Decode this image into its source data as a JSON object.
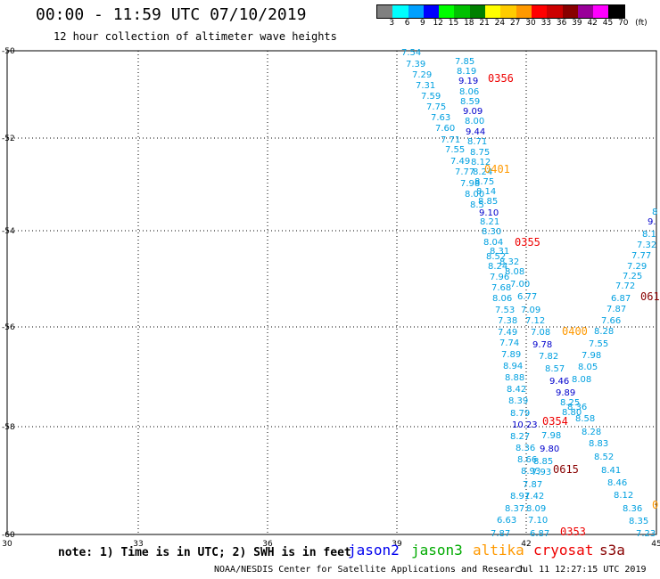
{
  "header": {
    "title": "00:00 - 11:59 UTC 07/10/2019",
    "subtitle": "12 hour collection of altimeter wave heights"
  },
  "colorbar": {
    "labels": [
      "3",
      "6",
      "9",
      "12",
      "15",
      "18",
      "21",
      "24",
      "27",
      "30",
      "33",
      "36",
      "39",
      "42",
      "45",
      "70"
    ],
    "unit": "(ft)",
    "colors": [
      "#808080",
      "#00ffff",
      "#00a0ff",
      "#0000ff",
      "#00ff00",
      "#00c000",
      "#008000",
      "#ffff00",
      "#ffcc00",
      "#ff9900",
      "#ff0000",
      "#cc0000",
      "#880000",
      "#990099",
      "#ff00ff",
      "#000000"
    ]
  },
  "axes": {
    "x_ticks": [
      "30",
      "33",
      "36",
      "39",
      "42",
      "45"
    ],
    "y_ticks": [
      "-50",
      "-52",
      "-54",
      "-56",
      "-58",
      "-60"
    ]
  },
  "map": {
    "track_values": [
      {
        "v": "7.54",
        "c": "#00a0e0"
      },
      {
        "v": "7.39",
        "c": "#00a0e0"
      },
      {
        "v": "7.29",
        "c": "#00a0e0"
      },
      {
        "v": "7.31",
        "c": "#00a0e0"
      },
      {
        "v": "7.59",
        "c": "#00a0e0"
      },
      {
        "v": "7.75",
        "c": "#00a0e0"
      },
      {
        "v": "7.63",
        "c": "#00a0e0"
      },
      {
        "v": "7.60",
        "c": "#00a0e0"
      },
      {
        "v": "7.71",
        "c": "#00a0e0"
      },
      {
        "v": "7.55",
        "c": "#00a0e0"
      },
      {
        "v": "7.49",
        "c": "#00a0e0"
      },
      {
        "v": "7.77",
        "c": "#00a0e0"
      },
      {
        "v": "7.98",
        "c": "#00a0e0"
      },
      {
        "v": "8.00",
        "c": "#00a0e0"
      },
      {
        "v": "8.5",
        "c": "#00a0e0"
      },
      {
        "v": "7.85",
        "c": "#00a0e0"
      },
      {
        "v": "8.19",
        "c": "#00a0e0"
      },
      {
        "v": "9.19",
        "c": "#0000cc"
      },
      {
        "v": "8.06",
        "c": "#00a0e0"
      },
      {
        "v": "8.59",
        "c": "#00a0e0"
      },
      {
        "v": "9.09",
        "c": "#0000cc"
      },
      {
        "v": "8.00",
        "c": "#00a0e0"
      },
      {
        "v": "9.44",
        "c": "#0000cc"
      },
      {
        "v": "8.71",
        "c": "#00a0e0"
      },
      {
        "v": "8.75",
        "c": "#00a0e0"
      },
      {
        "v": "8.12",
        "c": "#00a0e0"
      },
      {
        "v": "8.24",
        "c": "#00a0e0"
      },
      {
        "v": "8.75",
        "c": "#00a0e0"
      },
      {
        "v": "8.14",
        "c": "#00a0e0"
      },
      {
        "v": "8.85",
        "c": "#00a0e0"
      },
      {
        "v": "9.10",
        "c": "#0000cc"
      },
      {
        "v": "8.21",
        "c": "#00a0e0"
      },
      {
        "v": "8.30",
        "c": "#00a0e0"
      },
      {
        "v": "8.04",
        "c": "#00a0e0"
      },
      {
        "v": "8.31",
        "c": "#00a0e0"
      },
      {
        "v": "8.52",
        "c": "#00a0e0"
      },
      {
        "v": "8.32",
        "c": "#00a0e0"
      },
      {
        "v": "8.24",
        "c": "#00a0e0"
      },
      {
        "v": "8.08",
        "c": "#00a0e0"
      },
      {
        "v": "7.96",
        "c": "#00a0e0"
      },
      {
        "v": "7.00",
        "c": "#00a0e0"
      },
      {
        "v": "7.68",
        "c": "#00a0e0"
      },
      {
        "v": "6.77",
        "c": "#00a0e0"
      },
      {
        "v": "8.06",
        "c": "#00a0e0"
      },
      {
        "v": "7.09",
        "c": "#00a0e0"
      },
      {
        "v": "7.53",
        "c": "#00a0e0"
      },
      {
        "v": "7.12",
        "c": "#00a0e0"
      },
      {
        "v": "7.38",
        "c": "#00a0e0"
      },
      {
        "v": "7.08",
        "c": "#00a0e0"
      },
      {
        "v": "7.49",
        "c": "#00a0e0"
      },
      {
        "v": "9.78",
        "c": "#0000cc"
      },
      {
        "v": "7.74",
        "c": "#00a0e0"
      },
      {
        "v": "7.82",
        "c": "#00a0e0"
      },
      {
        "v": "7.89",
        "c": "#00a0e0"
      },
      {
        "v": "8.57",
        "c": "#00a0e0"
      },
      {
        "v": "8.94",
        "c": "#00a0e0"
      },
      {
        "v": "9.46",
        "c": "#0000cc"
      },
      {
        "v": "8.88",
        "c": "#00a0e0"
      },
      {
        "v": "9.89",
        "c": "#0000cc"
      },
      {
        "v": "8.42",
        "c": "#00a0e0"
      },
      {
        "v": "8.25",
        "c": "#00a0e0"
      },
      {
        "v": "8.39",
        "c": "#00a0e0"
      },
      {
        "v": "8.79",
        "c": "#00a0e0"
      },
      {
        "v": "8.80",
        "c": "#00a0e0"
      },
      {
        "v": "10.23",
        "c": "#0000cc"
      },
      {
        "v": "8.27",
        "c": "#00a0e0"
      },
      {
        "v": "7.98",
        "c": "#00a0e0"
      },
      {
        "v": "8.36",
        "c": "#00a0e0"
      },
      {
        "v": "9.80",
        "c": "#0000cc"
      },
      {
        "v": "8.66",
        "c": "#00a0e0"
      },
      {
        "v": "8.85",
        "c": "#00a0e0"
      },
      {
        "v": "8.93",
        "c": "#00a0e0"
      },
      {
        "v": "7.93",
        "c": "#00a0e0"
      },
      {
        "v": "7.87",
        "c": "#00a0e0"
      },
      {
        "v": "8.91",
        "c": "#00a0e0"
      },
      {
        "v": "7.42",
        "c": "#00a0e0"
      },
      {
        "v": "8.37",
        "c": "#00a0e0"
      },
      {
        "v": "8.09",
        "c": "#00a0e0"
      },
      {
        "v": "6.63",
        "c": "#00a0e0"
      },
      {
        "v": "7.10",
        "c": "#00a0e0"
      },
      {
        "v": "7.87",
        "c": "#00a0e0"
      },
      {
        "v": "6.87",
        "c": "#00a0e0"
      },
      {
        "v": "8.28",
        "c": "#00a0e0"
      },
      {
        "v": "7.55",
        "c": "#00a0e0"
      },
      {
        "v": "7.98",
        "c": "#00a0e0"
      },
      {
        "v": "8.05",
        "c": "#00a0e0"
      },
      {
        "v": "8.08",
        "c": "#00a0e0"
      },
      {
        "v": "8.36",
        "c": "#00a0e0"
      },
      {
        "v": "8.58",
        "c": "#00a0e0"
      },
      {
        "v": "8.28",
        "c": "#00a0e0"
      },
      {
        "v": "8.83",
        "c": "#00a0e0"
      },
      {
        "v": "8.52",
        "c": "#00a0e0"
      },
      {
        "v": "8.41",
        "c": "#00a0e0"
      },
      {
        "v": "8.46",
        "c": "#00a0e0"
      },
      {
        "v": "8.12",
        "c": "#00a0e0"
      },
      {
        "v": "8.36",
        "c": "#00a0e0"
      },
      {
        "v": "8.35",
        "c": "#00a0e0"
      },
      {
        "v": "7.23",
        "c": "#00a0e0"
      },
      {
        "v": "7.66",
        "c": "#00a0e0"
      },
      {
        "v": "7.87",
        "c": "#00a0e0"
      },
      {
        "v": "6.87",
        "c": "#00a0e0"
      },
      {
        "v": "7.72",
        "c": "#00a0e0"
      },
      {
        "v": "7.25",
        "c": "#00a0e0"
      },
      {
        "v": "7.29",
        "c": "#00a0e0"
      },
      {
        "v": "7.77",
        "c": "#00a0e0"
      },
      {
        "v": "7.32",
        "c": "#00a0e0"
      },
      {
        "v": "8.1",
        "c": "#00a0e0"
      },
      {
        "v": "9.",
        "c": "#0000cc"
      },
      {
        "v": "8",
        "c": "#00a0e0"
      }
    ],
    "time_labels": [
      {
        "v": "0356",
        "c": "#ee0000"
      },
      {
        "v": "0401",
        "c": "#ff9900"
      },
      {
        "v": "0355",
        "c": "#ee0000"
      },
      {
        "v": "0400",
        "c": "#ff9900"
      },
      {
        "v": "0354",
        "c": "#ee0000"
      },
      {
        "v": "0615",
        "c": "#880000"
      },
      {
        "v": "0353",
        "c": "#ee0000"
      },
      {
        "v": "061",
        "c": "#880000"
      },
      {
        "v": "0",
        "c": "#ff9900"
      }
    ]
  },
  "note": "note: 1) Time is in UTC; 2) SWH is in feet",
  "satellites": [
    {
      "name": "jason2",
      "color": "#0000ee"
    },
    {
      "name": "jason3",
      "color": "#00aa00"
    },
    {
      "name": "altika",
      "color": "#ff9900"
    },
    {
      "name": "cryosat",
      "color": "#ee0000"
    },
    {
      "name": "s3a",
      "color": "#880000"
    }
  ],
  "footer": {
    "credit": "NOAA/NESDIS Center for Satellite Applications and Research",
    "timestamp": "Jul 11 12:27:15 UTC 2019"
  }
}
